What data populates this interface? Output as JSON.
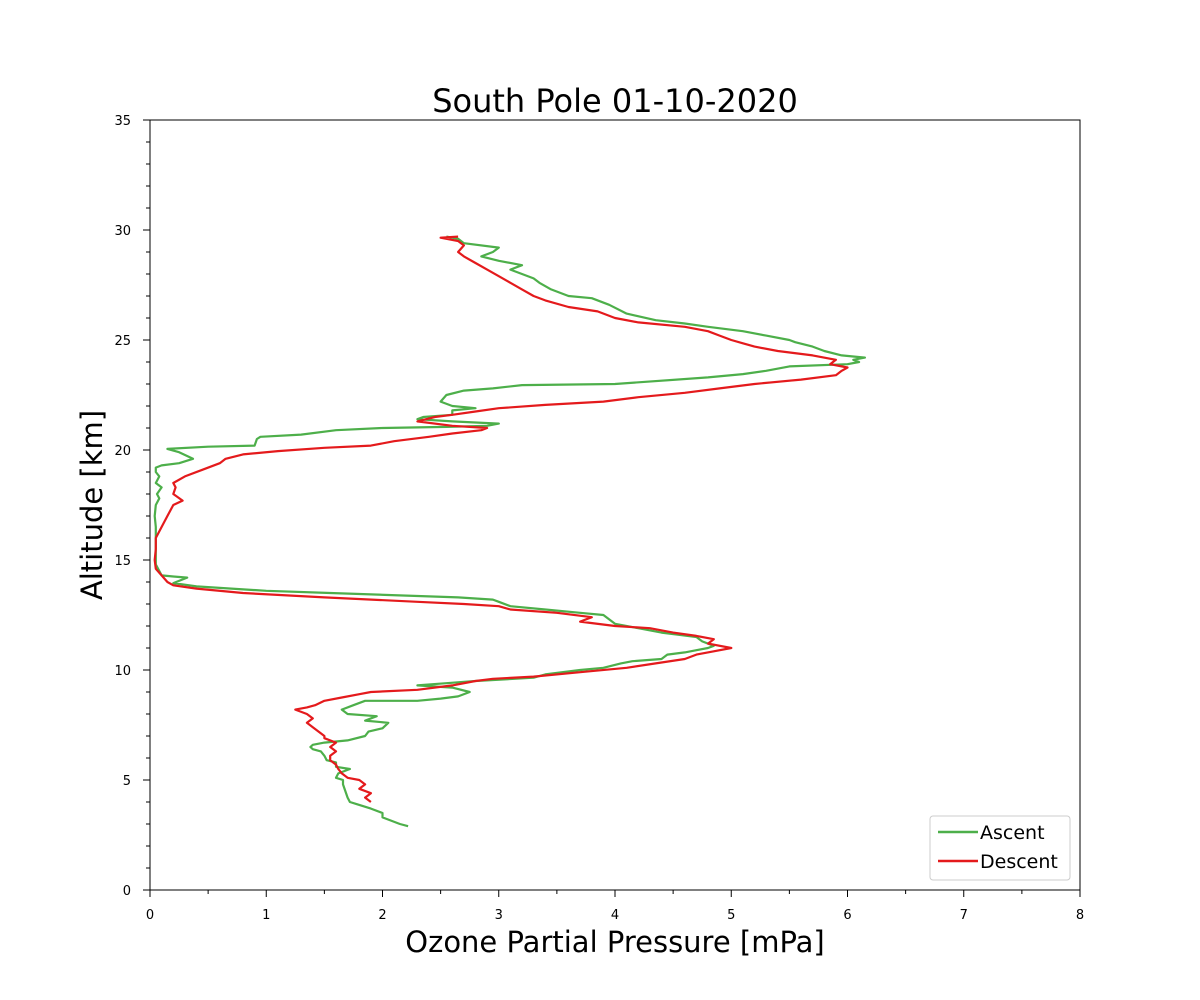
{
  "chart_data": {
    "type": "line",
    "title": "South Pole  01-10-2020",
    "xlabel": "Ozone Partial Pressure [mPa]",
    "ylabel": "Altitude [km]",
    "xlim": [
      0,
      8
    ],
    "ylim": [
      0,
      35
    ],
    "x_ticks": [
      "0",
      "1",
      "2",
      "3",
      "4",
      "5",
      "6",
      "7",
      "8"
    ],
    "y_ticks": [
      "0",
      "5",
      "10",
      "15",
      "20",
      "25",
      "30",
      "35"
    ],
    "grid": false,
    "legend_position": "bottom-right",
    "series": [
      {
        "name": "Ascent",
        "color": "#4daf4a",
        "points": [
          [
            2.22,
            2.9
          ],
          [
            2.15,
            3.0
          ],
          [
            2.0,
            3.3
          ],
          [
            2.0,
            3.5
          ],
          [
            1.9,
            3.7
          ],
          [
            1.78,
            3.9
          ],
          [
            1.72,
            4.0
          ],
          [
            1.7,
            4.2
          ],
          [
            1.68,
            4.5
          ],
          [
            1.66,
            4.8
          ],
          [
            1.66,
            5.0
          ],
          [
            1.6,
            5.1
          ],
          [
            1.62,
            5.3
          ],
          [
            1.72,
            5.5
          ],
          [
            1.6,
            5.6
          ],
          [
            1.6,
            5.8
          ],
          [
            1.52,
            5.9
          ],
          [
            1.5,
            6.1
          ],
          [
            1.47,
            6.3
          ],
          [
            1.4,
            6.4
          ],
          [
            1.38,
            6.5
          ],
          [
            1.4,
            6.6
          ],
          [
            1.5,
            6.7
          ],
          [
            1.7,
            6.8
          ],
          [
            1.85,
            7.0
          ],
          [
            1.88,
            7.2
          ],
          [
            2.0,
            7.35
          ],
          [
            2.05,
            7.6
          ],
          [
            1.85,
            7.7
          ],
          [
            1.95,
            7.9
          ],
          [
            1.7,
            8.0
          ],
          [
            1.65,
            8.2
          ],
          [
            1.75,
            8.4
          ],
          [
            1.85,
            8.6
          ],
          [
            2.3,
            8.6
          ],
          [
            2.5,
            8.7
          ],
          [
            2.65,
            8.8
          ],
          [
            2.75,
            9.0
          ],
          [
            2.6,
            9.2
          ],
          [
            2.3,
            9.3
          ],
          [
            2.55,
            9.4
          ],
          [
            2.8,
            9.5
          ],
          [
            3.3,
            9.65
          ],
          [
            3.4,
            9.8
          ],
          [
            3.7,
            10.0
          ],
          [
            3.9,
            10.1
          ],
          [
            4.05,
            10.3
          ],
          [
            4.15,
            10.4
          ],
          [
            4.4,
            10.5
          ],
          [
            4.45,
            10.7
          ],
          [
            4.6,
            10.8
          ],
          [
            4.7,
            10.9
          ],
          [
            4.8,
            11.0
          ],
          [
            4.85,
            11.1
          ],
          [
            4.75,
            11.3
          ],
          [
            4.7,
            11.5
          ],
          [
            4.4,
            11.7
          ],
          [
            4.2,
            11.9
          ],
          [
            4.0,
            12.1
          ],
          [
            3.95,
            12.3
          ],
          [
            3.9,
            12.5
          ],
          [
            3.7,
            12.6
          ],
          [
            3.4,
            12.75
          ],
          [
            3.1,
            12.9
          ],
          [
            3.0,
            13.1
          ],
          [
            2.95,
            13.2
          ],
          [
            2.65,
            13.3
          ],
          [
            1.55,
            13.5
          ],
          [
            1.0,
            13.6
          ],
          [
            0.7,
            13.7
          ],
          [
            0.4,
            13.8
          ],
          [
            0.2,
            13.95
          ],
          [
            0.32,
            14.2
          ],
          [
            0.2,
            14.25
          ],
          [
            0.1,
            14.3
          ],
          [
            0.08,
            14.5
          ],
          [
            0.05,
            14.8
          ],
          [
            0.05,
            15.2
          ],
          [
            0.05,
            15.6
          ],
          [
            0.05,
            16.0
          ],
          [
            0.05,
            16.5
          ],
          [
            0.04,
            17.0
          ],
          [
            0.05,
            17.5
          ],
          [
            0.08,
            17.8
          ],
          [
            0.06,
            18.0
          ],
          [
            0.1,
            18.3
          ],
          [
            0.05,
            18.5
          ],
          [
            0.08,
            18.8
          ],
          [
            0.05,
            19.0
          ],
          [
            0.05,
            19.2
          ],
          [
            0.1,
            19.3
          ],
          [
            0.25,
            19.4
          ],
          [
            0.37,
            19.6
          ],
          [
            0.25,
            19.9
          ],
          [
            0.15,
            20.05
          ],
          [
            0.5,
            20.15
          ],
          [
            0.9,
            20.2
          ],
          [
            0.92,
            20.5
          ],
          [
            0.95,
            20.6
          ],
          [
            1.3,
            20.7
          ],
          [
            1.6,
            20.9
          ],
          [
            2.0,
            21.0
          ],
          [
            2.55,
            21.05
          ],
          [
            2.9,
            21.1
          ],
          [
            3.0,
            21.2
          ],
          [
            2.6,
            21.3
          ],
          [
            2.3,
            21.4
          ],
          [
            2.35,
            21.5
          ],
          [
            2.6,
            21.6
          ],
          [
            2.6,
            21.8
          ],
          [
            2.8,
            21.9
          ],
          [
            2.6,
            22.0
          ],
          [
            2.5,
            22.2
          ],
          [
            2.55,
            22.5
          ],
          [
            2.7,
            22.7
          ],
          [
            2.95,
            22.8
          ],
          [
            3.2,
            22.95
          ],
          [
            4.0,
            23.0
          ],
          [
            4.8,
            23.3
          ],
          [
            5.1,
            23.45
          ],
          [
            5.3,
            23.6
          ],
          [
            5.5,
            23.8
          ],
          [
            6.0,
            23.9
          ],
          [
            6.1,
            24.0
          ],
          [
            6.05,
            24.1
          ],
          [
            6.15,
            24.2
          ],
          [
            5.95,
            24.3
          ],
          [
            5.8,
            24.5
          ],
          [
            5.7,
            24.7
          ],
          [
            5.55,
            24.9
          ],
          [
            5.5,
            25.0
          ],
          [
            5.3,
            25.2
          ],
          [
            5.1,
            25.4
          ],
          [
            4.8,
            25.6
          ],
          [
            4.6,
            25.75
          ],
          [
            4.35,
            25.9
          ],
          [
            4.1,
            26.2
          ],
          [
            3.95,
            26.6
          ],
          [
            3.8,
            26.9
          ],
          [
            3.6,
            27.0
          ],
          [
            3.45,
            27.3
          ],
          [
            3.35,
            27.6
          ],
          [
            3.3,
            27.8
          ],
          [
            3.2,
            28.0
          ],
          [
            3.1,
            28.2
          ],
          [
            3.2,
            28.4
          ],
          [
            3.0,
            28.6
          ],
          [
            2.85,
            28.8
          ],
          [
            2.95,
            29.0
          ],
          [
            3.0,
            29.2
          ],
          [
            2.7,
            29.4
          ],
          [
            2.65,
            29.6
          ],
          [
            2.55,
            29.7
          ]
        ]
      },
      {
        "name": "Descent",
        "color": "#e41a1c",
        "points": [
          [
            1.9,
            4.0
          ],
          [
            1.85,
            4.2
          ],
          [
            1.9,
            4.4
          ],
          [
            1.8,
            4.6
          ],
          [
            1.85,
            4.8
          ],
          [
            1.8,
            5.0
          ],
          [
            1.7,
            5.1
          ],
          [
            1.65,
            5.3
          ],
          [
            1.62,
            5.5
          ],
          [
            1.6,
            5.7
          ],
          [
            1.55,
            5.9
          ],
          [
            1.55,
            6.1
          ],
          [
            1.6,
            6.3
          ],
          [
            1.55,
            6.5
          ],
          [
            1.6,
            6.7
          ],
          [
            1.5,
            6.9
          ],
          [
            1.5,
            7.0
          ],
          [
            1.45,
            7.2
          ],
          [
            1.4,
            7.4
          ],
          [
            1.35,
            7.6
          ],
          [
            1.4,
            7.8
          ],
          [
            1.35,
            8.0
          ],
          [
            1.25,
            8.2
          ],
          [
            1.35,
            8.3
          ],
          [
            1.42,
            8.4
          ],
          [
            1.5,
            8.6
          ],
          [
            1.65,
            8.75
          ],
          [
            1.8,
            8.9
          ],
          [
            1.9,
            9.0
          ],
          [
            2.3,
            9.1
          ],
          [
            2.6,
            9.3
          ],
          [
            2.8,
            9.5
          ],
          [
            2.95,
            9.6
          ],
          [
            3.3,
            9.7
          ],
          [
            3.7,
            9.9
          ],
          [
            4.1,
            10.1
          ],
          [
            4.35,
            10.3
          ],
          [
            4.6,
            10.5
          ],
          [
            4.7,
            10.7
          ],
          [
            4.85,
            10.85
          ],
          [
            5.0,
            11.0
          ],
          [
            4.8,
            11.2
          ],
          [
            4.85,
            11.4
          ],
          [
            4.7,
            11.55
          ],
          [
            4.5,
            11.7
          ],
          [
            4.3,
            11.9
          ],
          [
            4.0,
            12.0
          ],
          [
            3.7,
            12.2
          ],
          [
            3.8,
            12.4
          ],
          [
            3.5,
            12.6
          ],
          [
            3.1,
            12.75
          ],
          [
            3.0,
            12.9
          ],
          [
            2.7,
            13.0
          ],
          [
            2.3,
            13.1
          ],
          [
            1.5,
            13.3
          ],
          [
            0.8,
            13.5
          ],
          [
            0.4,
            13.7
          ],
          [
            0.2,
            13.85
          ],
          [
            0.15,
            14.0
          ],
          [
            0.1,
            14.3
          ],
          [
            0.05,
            14.6
          ],
          [
            0.04,
            15.0
          ],
          [
            0.05,
            15.5
          ],
          [
            0.05,
            16.0
          ],
          [
            0.1,
            16.5
          ],
          [
            0.15,
            17.0
          ],
          [
            0.2,
            17.5
          ],
          [
            0.28,
            17.7
          ],
          [
            0.2,
            18.0
          ],
          [
            0.22,
            18.3
          ],
          [
            0.2,
            18.5
          ],
          [
            0.3,
            18.8
          ],
          [
            0.45,
            19.1
          ],
          [
            0.6,
            19.4
          ],
          [
            0.65,
            19.6
          ],
          [
            0.8,
            19.8
          ],
          [
            1.1,
            19.95
          ],
          [
            1.5,
            20.1
          ],
          [
            1.9,
            20.2
          ],
          [
            2.1,
            20.4
          ],
          [
            2.4,
            20.6
          ],
          [
            2.6,
            20.75
          ],
          [
            2.85,
            20.9
          ],
          [
            2.9,
            21.0
          ],
          [
            2.6,
            21.1
          ],
          [
            2.3,
            21.3
          ],
          [
            2.45,
            21.5
          ],
          [
            2.6,
            21.6
          ],
          [
            2.8,
            21.75
          ],
          [
            3.0,
            21.9
          ],
          [
            3.4,
            22.05
          ],
          [
            3.9,
            22.2
          ],
          [
            4.2,
            22.4
          ],
          [
            4.6,
            22.6
          ],
          [
            4.9,
            22.8
          ],
          [
            5.2,
            23.0
          ],
          [
            5.6,
            23.2
          ],
          [
            5.9,
            23.4
          ],
          [
            5.95,
            23.6
          ],
          [
            6.0,
            23.75
          ],
          [
            5.85,
            23.9
          ],
          [
            5.9,
            24.1
          ],
          [
            5.7,
            24.3
          ],
          [
            5.4,
            24.5
          ],
          [
            5.2,
            24.7
          ],
          [
            5.1,
            24.85
          ],
          [
            5.0,
            25.0
          ],
          [
            4.9,
            25.2
          ],
          [
            4.8,
            25.4
          ],
          [
            4.6,
            25.6
          ],
          [
            4.2,
            25.8
          ],
          [
            4.0,
            26.0
          ],
          [
            3.85,
            26.3
          ],
          [
            3.6,
            26.5
          ],
          [
            3.4,
            26.8
          ],
          [
            3.3,
            27.0
          ],
          [
            3.2,
            27.3
          ],
          [
            3.1,
            27.6
          ],
          [
            3.0,
            27.9
          ],
          [
            2.9,
            28.2
          ],
          [
            2.8,
            28.5
          ],
          [
            2.7,
            28.8
          ],
          [
            2.65,
            29.0
          ],
          [
            2.7,
            29.3
          ],
          [
            2.65,
            29.5
          ],
          [
            2.5,
            29.65
          ],
          [
            2.65,
            29.7
          ]
        ]
      }
    ]
  }
}
